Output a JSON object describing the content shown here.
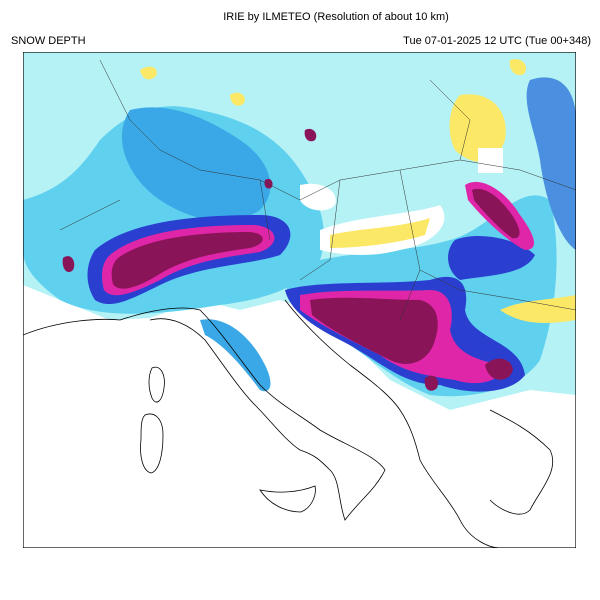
{
  "header": {
    "title": "IRIE by ILMETEO (Resolution of about 10 km)",
    "field": "SNOW DEPTH",
    "valid_time": "Tue 07-01-2025 12 UTC (Tue 00+348)"
  }
}
